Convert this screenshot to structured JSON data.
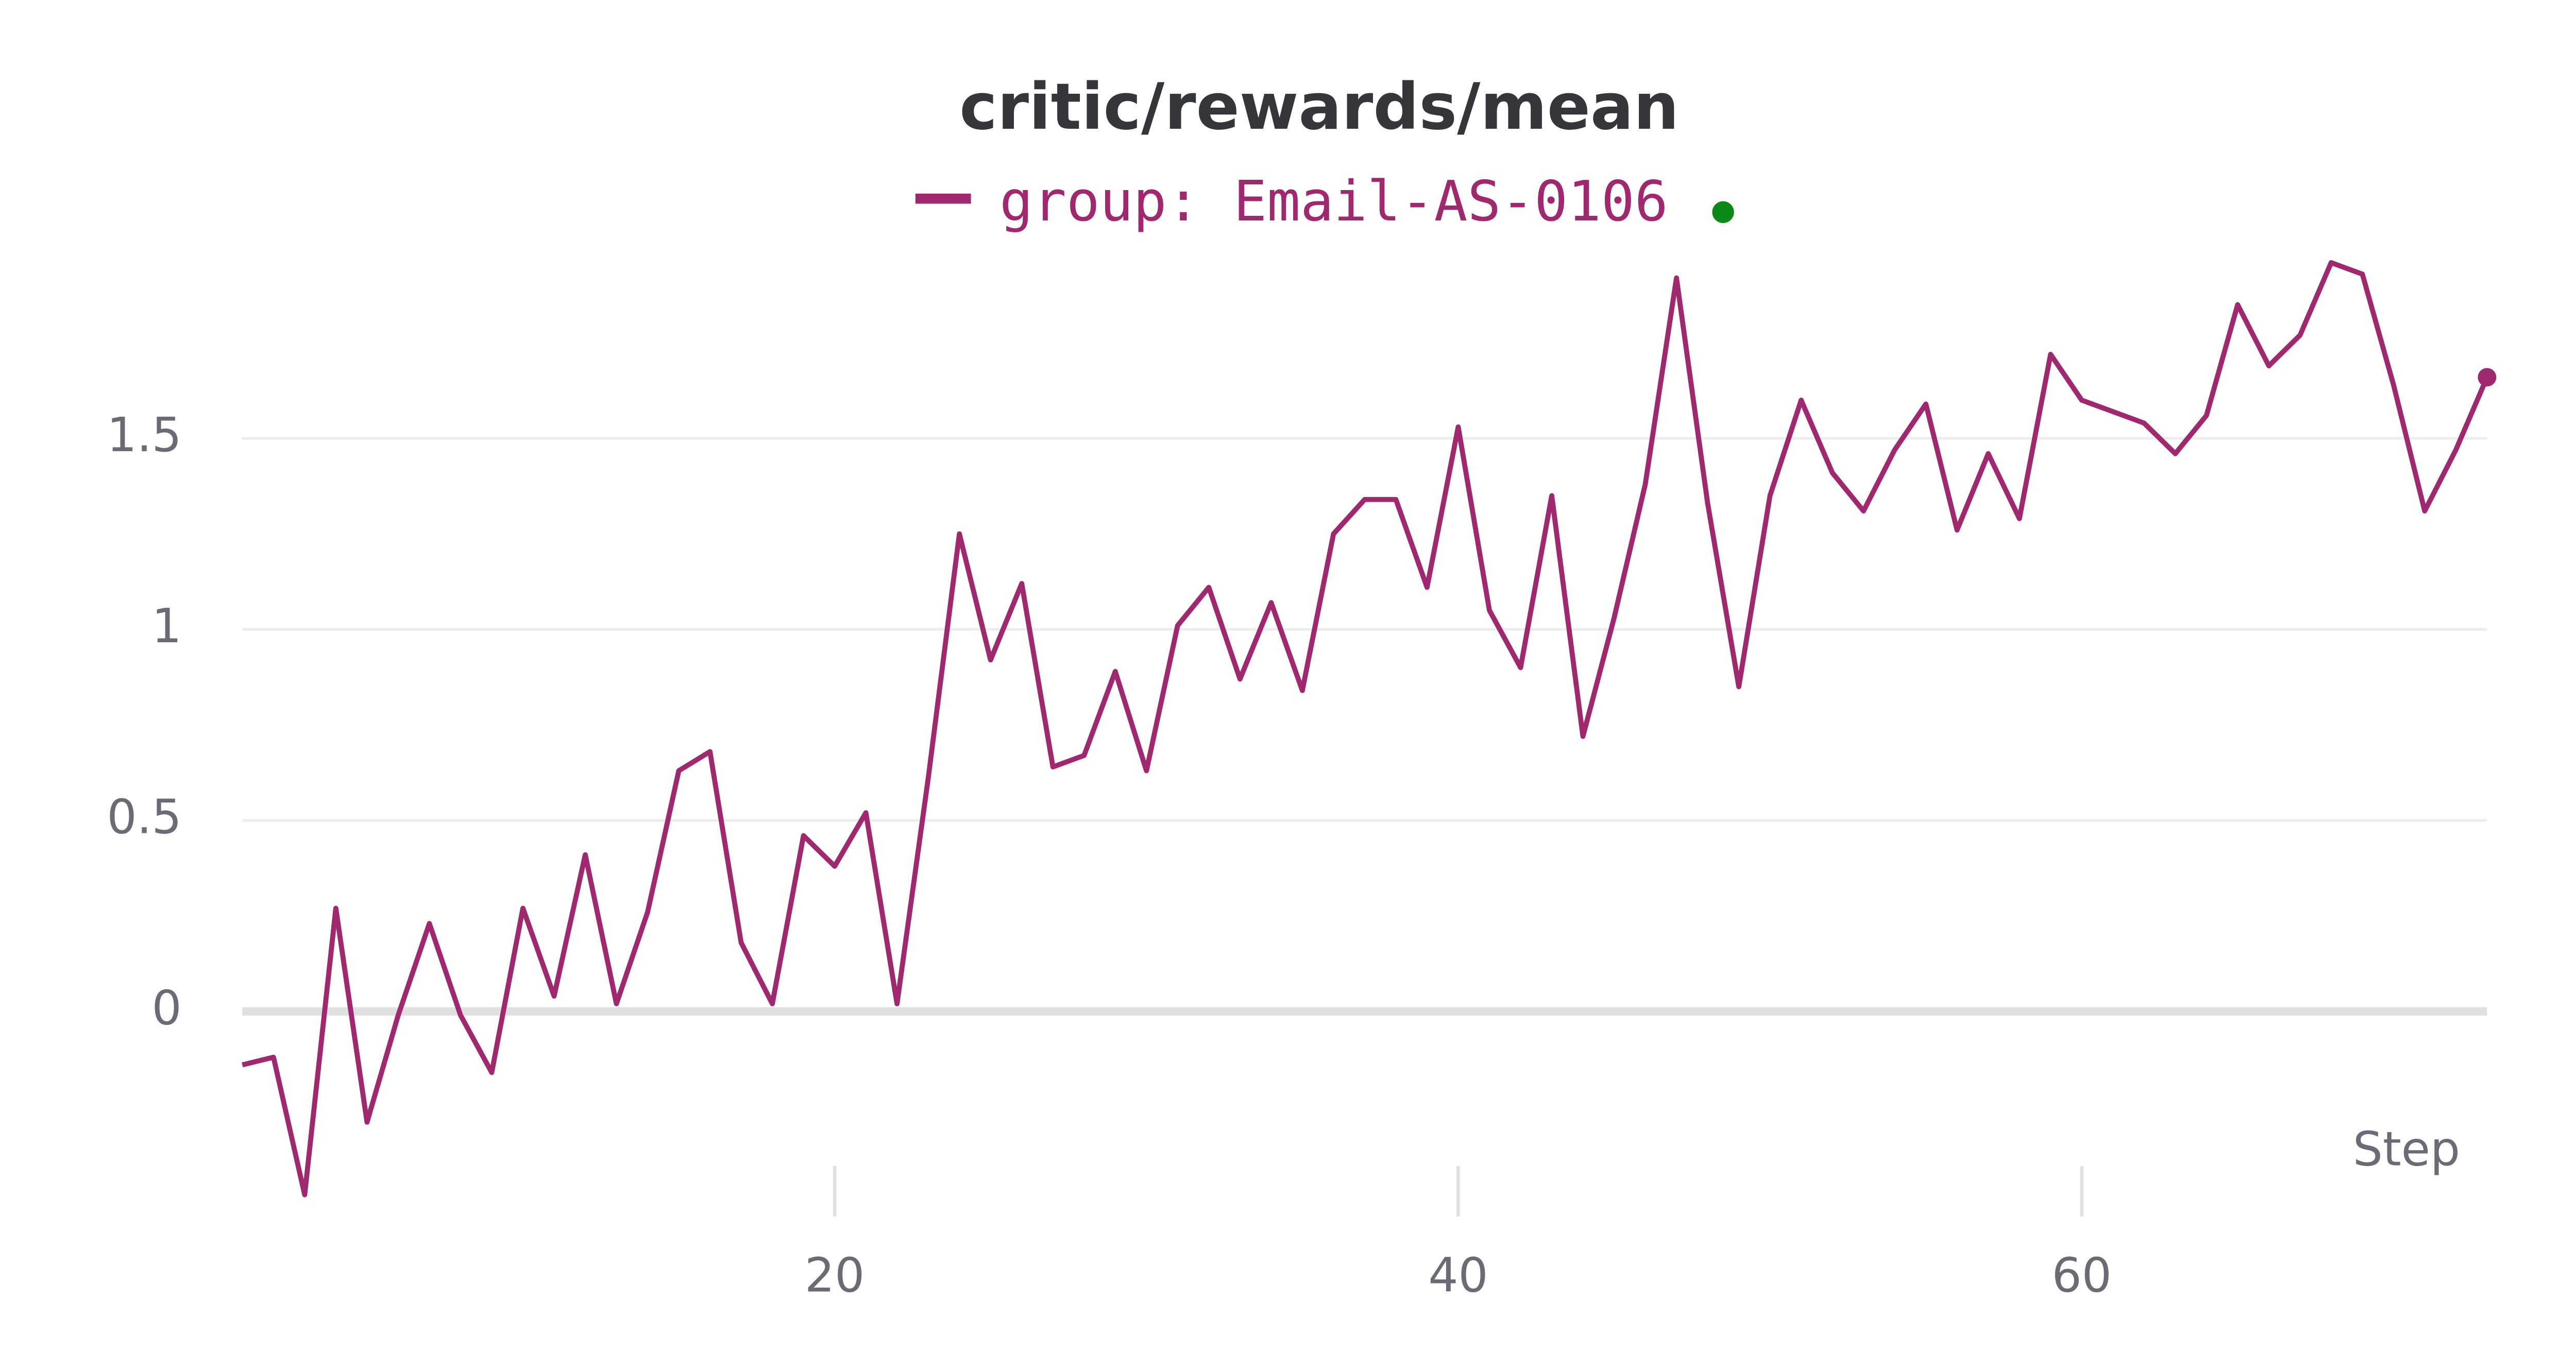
{
  "chart_data": {
    "type": "line",
    "title": "critic/rewards/mean",
    "x_label": "Step",
    "x": [
      1,
      2,
      3,
      4,
      5,
      6,
      7,
      8,
      9,
      10,
      11,
      12,
      13,
      14,
      15,
      16,
      17,
      18,
      19,
      20,
      21,
      22,
      23,
      24,
      25,
      26,
      27,
      28,
      29,
      30,
      31,
      32,
      33,
      34,
      35,
      36,
      37,
      38,
      39,
      40,
      41,
      42,
      43,
      44,
      45,
      46,
      47,
      48,
      49,
      50,
      51,
      52,
      53,
      54,
      55,
      56,
      57,
      58,
      59,
      60,
      61,
      62,
      63,
      64,
      65,
      66,
      67,
      68,
      69,
      70,
      71,
      72,
      73
    ],
    "series": [
      {
        "name": "group: Email-AS-0106",
        "color": "#a0286e",
        "values": [
          -0.14,
          -0.12,
          -0.48,
          0.27,
          -0.29,
          -0.01,
          0.23,
          -0.01,
          -0.16,
          0.27,
          0.04,
          0.41,
          0.02,
          0.26,
          0.63,
          0.68,
          0.18,
          0.02,
          0.46,
          0.38,
          0.52,
          0.02,
          0.61,
          1.25,
          0.92,
          1.12,
          0.64,
          0.67,
          0.89,
          0.63,
          1.01,
          1.11,
          0.87,
          1.07,
          0.84,
          1.25,
          1.34,
          1.34,
          1.11,
          1.53,
          1.05,
          0.9,
          1.35,
          0.72,
          1.03,
          1.38,
          1.92,
          1.33,
          0.85,
          1.35,
          1.6,
          1.41,
          1.31,
          1.47,
          1.59,
          1.26,
          1.46,
          1.29,
          1.72,
          1.6,
          1.57,
          1.54,
          1.46,
          1.56,
          1.85,
          1.69,
          1.77,
          1.96,
          1.93,
          1.64,
          1.31,
          1.47,
          1.66
        ]
      }
    ],
    "xlim": [
      1,
      73
    ],
    "xticks": [
      20,
      40,
      60
    ],
    "ylim": [
      -0.55,
      2.05
    ],
    "yticks": [
      0,
      0.5,
      1,
      1.5
    ],
    "grid": true
  }
}
